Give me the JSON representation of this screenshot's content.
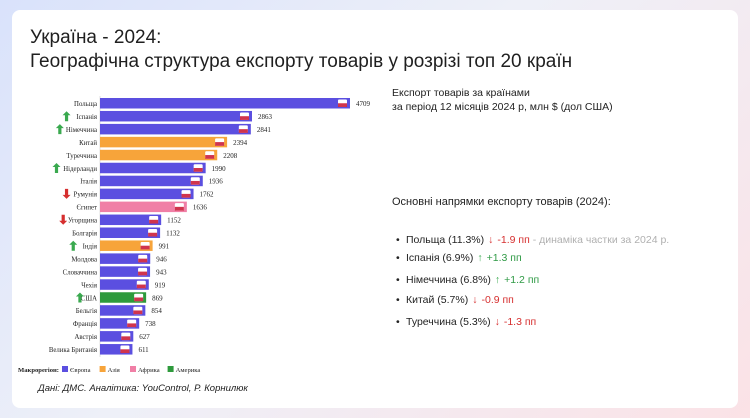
{
  "title": {
    "line1": "Україна - 2024:",
    "line2": "Географічна структура експорту товарів у розрізі топ 20 країн"
  },
  "info": {
    "line1": "Експорт товарів за країнами",
    "line2": "за період 12 місяців 2024 р, млн $ (дол США)"
  },
  "directions": {
    "title": "Основні напрямки експорту товарів (2024):",
    "items": [
      {
        "label": "Польща (11.3%)",
        "arrow": "down",
        "value": "-1.9 пп",
        "note": "- динаміка частки за 2024 р."
      },
      {
        "label": "Іспанія (6.9%)",
        "arrow": "up",
        "value": "+1.3 пп",
        "note": ""
      },
      {
        "label": "Німеччина (6.8%)",
        "arrow": "up",
        "value": "+1.2 пп",
        "note": ""
      },
      {
        "label": "Китай (5.7%)",
        "arrow": "down",
        "value": "-0.9 пп",
        "note": ""
      },
      {
        "label": "Туреччина (5.3%)",
        "arrow": "down",
        "value": "-1.3 пп",
        "note": ""
      }
    ]
  },
  "source": "Дані: ДМС. Аналітика: YouControl, Р. Корнилюк",
  "colors": {
    "Європа": "#5b4fe0",
    "Азія": "#f7a43a",
    "Африка": "#f07fa6",
    "Америка": "#2e9a3c",
    "up": "#3aa94f",
    "down": "#d62f2f"
  },
  "chart_data": {
    "type": "bar",
    "orientation": "horizontal",
    "categories": [
      "Польща",
      "Іспанія",
      "Німеччина",
      "Китай",
      "Туреччина",
      "Нідерланди",
      "Італія",
      "Румунія",
      "Єгипет",
      "Угорщина",
      "Болгарія",
      "Індія",
      "Молдова",
      "Словаччина",
      "Чехія",
      "США",
      "Бельгія",
      "Франція",
      "Австрія",
      "Велика Британія"
    ],
    "values": [
      4709,
      2863,
      2841,
      2394,
      2208,
      1990,
      1936,
      1762,
      1636,
      1152,
      1132,
      991,
      946,
      943,
      919,
      869,
      854,
      738,
      627,
      611
    ],
    "region": [
      "Європа",
      "Європа",
      "Європа",
      "Азія",
      "Азія",
      "Європа",
      "Європа",
      "Європа",
      "Африка",
      "Європа",
      "Європа",
      "Азія",
      "Європа",
      "Європа",
      "Європа",
      "Америка",
      "Європа",
      "Європа",
      "Європа",
      "Європа"
    ],
    "trend": [
      "",
      "up",
      "up",
      "",
      "",
      "up",
      "",
      "down",
      "",
      "down",
      "",
      "up",
      "",
      "",
      "",
      "up",
      "",
      "",
      "",
      ""
    ],
    "flag_icons": [
      "poland-flag-icon",
      "spain-flag-icon",
      "germany-flag-icon",
      "china-flag-icon",
      "turkey-flag-icon",
      "netherlands-flag-icon",
      "italy-flag-icon",
      "romania-flag-icon",
      "egypt-flag-icon",
      "hungary-flag-icon",
      "bulgaria-flag-icon",
      "india-flag-icon",
      "moldova-flag-icon",
      "slovakia-flag-icon",
      "czechia-flag-icon",
      "usa-flag-icon",
      "belgium-flag-icon",
      "france-flag-icon",
      "austria-flag-icon",
      "uk-flag-icon"
    ],
    "legend": {
      "title": "Макрорегіон:",
      "entries": [
        "Європа",
        "Азія",
        "Африка",
        "Америка"
      ],
      "placement": "bottom"
    },
    "xlim": [
      0,
      4709
    ]
  }
}
